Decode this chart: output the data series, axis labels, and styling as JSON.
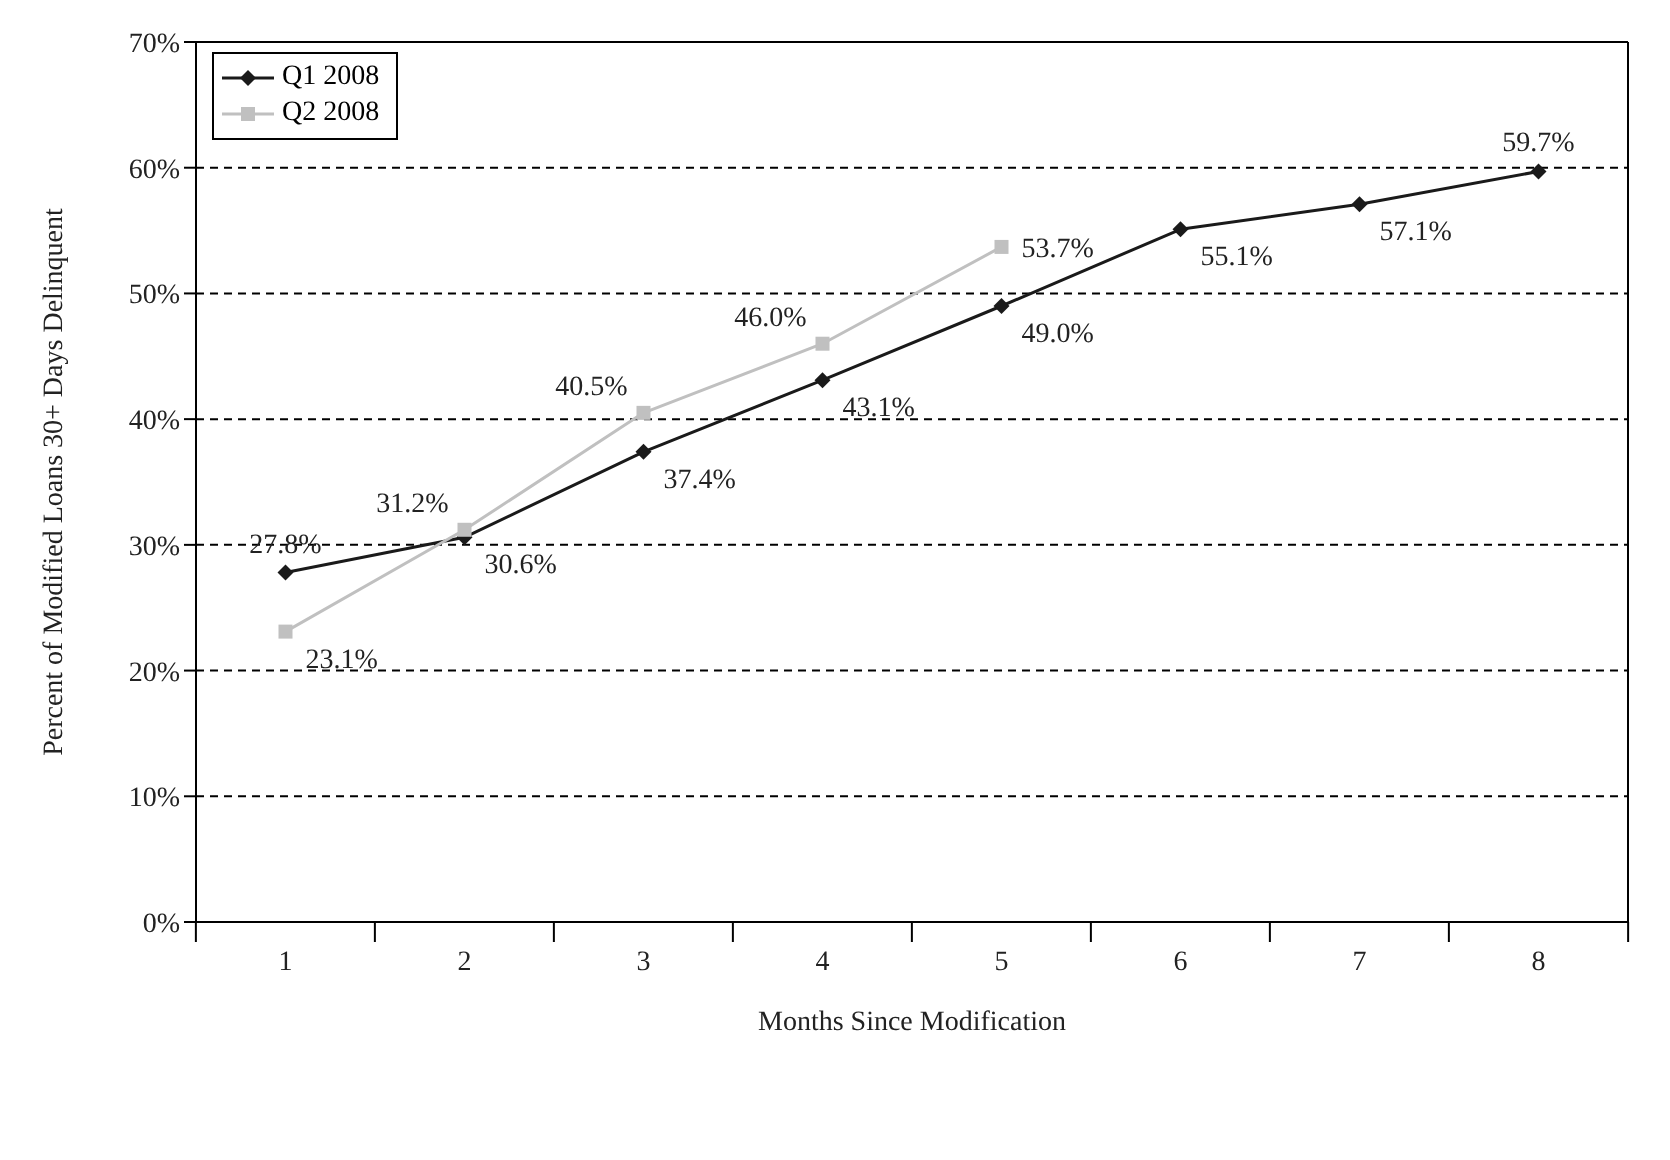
{
  "chart_data": {
    "type": "line",
    "xlabel": "Months Since Modification",
    "ylabel": "Percent of Modified Loans 30+ Days Delinquent",
    "categories": [
      "1",
      "2",
      "3",
      "4",
      "5",
      "6",
      "7",
      "8"
    ],
    "series": [
      {
        "name": "Q1 2008",
        "color": "#1a1a1a",
        "marker": "diamond",
        "values": [
          27.8,
          30.6,
          37.4,
          43.1,
          49.0,
          55.1,
          57.1,
          59.7
        ],
        "value_labels": [
          "27.8%",
          "30.6%",
          "37.4%",
          "43.1%",
          "49.0%",
          "55.1%",
          "57.1%",
          "59.7%"
        ]
      },
      {
        "name": "Q2 2008",
        "color": "#c0c0c0",
        "marker": "square",
        "values": [
          23.1,
          31.2,
          40.5,
          46.0,
          53.7,
          null,
          null,
          null
        ],
        "value_labels": [
          "23.1%",
          "31.2%",
          "40.5%",
          "46.0%",
          "53.7%",
          null,
          null,
          null
        ]
      }
    ],
    "ylim": [
      0,
      70
    ],
    "yticks": [
      {
        "value": 0,
        "label": "0%"
      },
      {
        "value": 10,
        "label": "10%"
      },
      {
        "value": 20,
        "label": "20%"
      },
      {
        "value": 30,
        "label": "30%"
      },
      {
        "value": 40,
        "label": "40%"
      },
      {
        "value": 50,
        "label": "50%"
      },
      {
        "value": 60,
        "label": "60%"
      },
      {
        "value": 70,
        "label": "70%"
      }
    ],
    "grid": "y",
    "line_style": "solid",
    "legend": "top left"
  }
}
